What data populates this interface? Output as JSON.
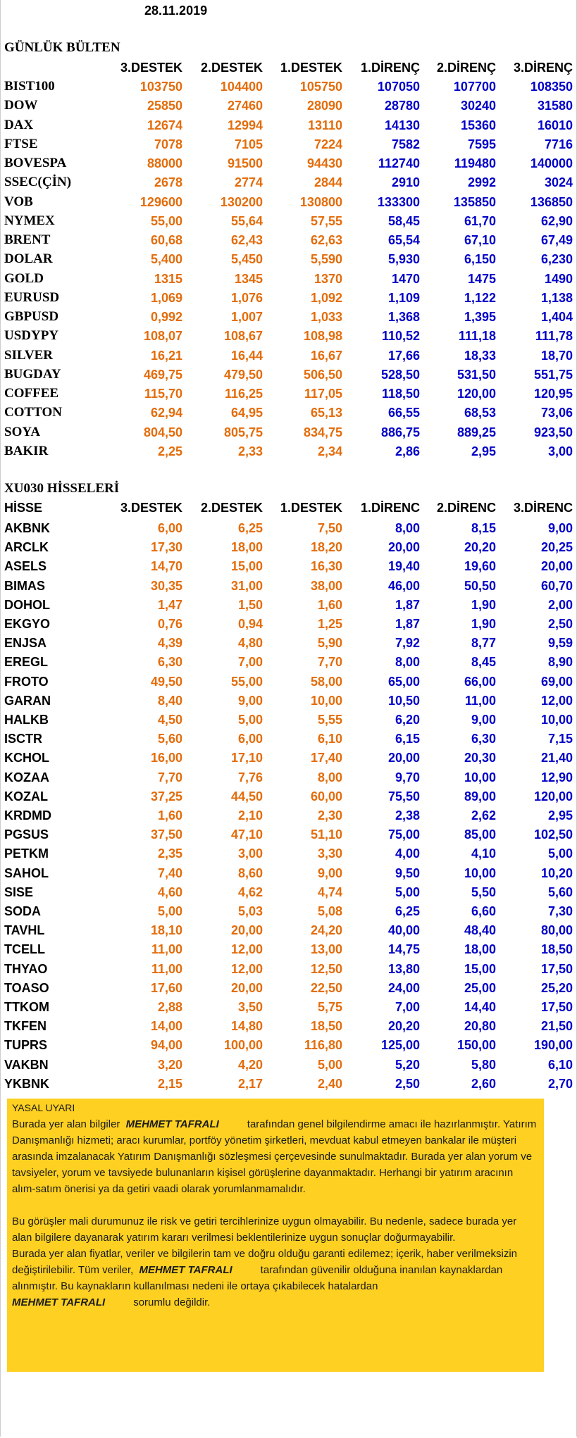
{
  "date": "28.11.2019",
  "bulletin": {
    "title": "GÜNLÜK BÜLTEN",
    "header": [
      "3.DESTEK",
      "2.DESTEK",
      "1.DESTEK",
      "1.DİRENÇ",
      "2.DİRENÇ",
      "3.DİRENÇ"
    ],
    "rows": [
      [
        "BIST100",
        "103750",
        "104400",
        "105750",
        "107050",
        "107700",
        "108350"
      ],
      [
        "DOW",
        "25850",
        "27460",
        "28090",
        "28780",
        "30240",
        "31580"
      ],
      [
        "DAX",
        "12674",
        "12994",
        "13110",
        "14130",
        "15360",
        "16010"
      ],
      [
        "FTSE",
        "7078",
        "7105",
        "7224",
        "7582",
        "7595",
        "7716"
      ],
      [
        "BOVESPA",
        "88000",
        "91500",
        "94430",
        "112740",
        "119480",
        "140000"
      ],
      [
        "SSEC(ÇİN)",
        "2678",
        "2774",
        "2844",
        "2910",
        "2992",
        "3024"
      ],
      [
        "VOB",
        "129600",
        "130200",
        "130800",
        "133300",
        "135850",
        "136850"
      ],
      [
        "NYMEX",
        "55,00",
        "55,64",
        "57,55",
        "58,45",
        "61,70",
        "62,90"
      ],
      [
        "BRENT",
        "60,68",
        "62,43",
        "62,63",
        "65,54",
        "67,10",
        "67,49"
      ],
      [
        "DOLAR",
        "5,400",
        "5,450",
        "5,590",
        "5,930",
        "6,150",
        "6,230"
      ],
      [
        "GOLD",
        "1315",
        "1345",
        "1370",
        "1470",
        "1475",
        "1490"
      ],
      [
        "EURUSD",
        "1,069",
        "1,076",
        "1,092",
        "1,109",
        "1,122",
        "1,138"
      ],
      [
        "GBPUSD",
        "0,992",
        "1,007",
        "1,033",
        "1,368",
        "1,395",
        "1,404"
      ],
      [
        "USDYPY",
        "108,07",
        "108,67",
        "108,98",
        "110,52",
        "111,18",
        "111,78"
      ],
      [
        "SILVER",
        "16,21",
        "16,44",
        "16,67",
        "17,66",
        "18,33",
        "18,70"
      ],
      [
        "BUGDAY",
        "469,75",
        "479,50",
        "506,50",
        "528,50",
        "531,50",
        "551,75"
      ],
      [
        "COFFEE",
        "115,70",
        "116,25",
        "117,05",
        "118,50",
        "120,00",
        "120,95"
      ],
      [
        "COTTON",
        "62,94",
        "64,95",
        "65,13",
        "66,55",
        "68,53",
        "73,06"
      ],
      [
        "SOYA",
        "804,50",
        "805,75",
        "834,75",
        "886,75",
        "889,25",
        "923,50"
      ],
      [
        "BAKIR",
        "2,25",
        "2,33",
        "2,34",
        "2,86",
        "2,95",
        "3,00"
      ]
    ]
  },
  "stocks": {
    "title": "XU030 HİSSELERİ",
    "header": [
      "HİSSE",
      "3.DESTEK",
      "2.DESTEK",
      "1.DESTEK",
      "1.DİRENC",
      "2.DİRENC",
      "3.DİRENC"
    ],
    "rows": [
      [
        "AKBNK",
        "6,00",
        "6,25",
        "7,50",
        "8,00",
        "8,15",
        "9,00"
      ],
      [
        "ARCLK",
        "17,30",
        "18,00",
        "18,20",
        "20,00",
        "20,20",
        "20,25"
      ],
      [
        "ASELS",
        "14,70",
        "15,00",
        "16,30",
        "19,40",
        "19,60",
        "20,00"
      ],
      [
        "BIMAS",
        "30,35",
        "31,00",
        "38,00",
        "46,00",
        "50,50",
        "60,70"
      ],
      [
        "DOHOL",
        "1,47",
        "1,50",
        "1,60",
        "1,87",
        "1,90",
        "2,00"
      ],
      [
        "EKGYO",
        "0,76",
        "0,94",
        "1,25",
        "1,87",
        "1,90",
        "2,50"
      ],
      [
        "ENJSA",
        "4,39",
        "4,80",
        "5,90",
        "7,92",
        "8,77",
        "9,59"
      ],
      [
        "EREGL",
        "6,30",
        "7,00",
        "7,70",
        "8,00",
        "8,45",
        "8,90"
      ],
      [
        "FROTO",
        "49,50",
        "55,00",
        "58,00",
        "65,00",
        "66,00",
        "69,00"
      ],
      [
        "GARAN",
        "8,40",
        "9,00",
        "10,00",
        "10,50",
        "11,00",
        "12,00"
      ],
      [
        "HALKB",
        "4,50",
        "5,00",
        "5,55",
        "6,20",
        "9,00",
        "10,00"
      ],
      [
        "ISCTR",
        "5,60",
        "6,00",
        "6,10",
        "6,15",
        "6,30",
        "7,15"
      ],
      [
        "KCHOL",
        "16,00",
        "17,10",
        "17,40",
        "20,00",
        "20,30",
        "21,40"
      ],
      [
        "KOZAA",
        "7,70",
        "7,76",
        "8,00",
        "9,70",
        "10,00",
        "12,90"
      ],
      [
        "KOZAL",
        "37,25",
        "44,50",
        "60,00",
        "75,50",
        "89,00",
        "120,00"
      ],
      [
        "KRDMD",
        "1,60",
        "2,10",
        "2,30",
        "2,38",
        "2,62",
        "2,95"
      ],
      [
        "PGSUS",
        "37,50",
        "47,10",
        "51,10",
        "75,00",
        "85,00",
        "102,50"
      ],
      [
        "PETKM",
        "2,35",
        "3,00",
        "3,30",
        "4,00",
        "4,10",
        "5,00"
      ],
      [
        "SAHOL",
        "7,40",
        "8,60",
        "9,00",
        "9,50",
        "10,00",
        "10,20"
      ],
      [
        "SISE",
        "4,60",
        "4,62",
        "4,74",
        "5,00",
        "5,50",
        "5,60"
      ],
      [
        "SODA",
        "5,00",
        "5,03",
        "5,08",
        "6,25",
        "6,60",
        "7,30"
      ],
      [
        "TAVHL",
        "18,10",
        "20,00",
        "24,20",
        "40,00",
        "48,40",
        "80,00"
      ],
      [
        "TCELL",
        "11,00",
        "12,00",
        "13,00",
        "14,75",
        "18,00",
        "18,50"
      ],
      [
        "THYAO",
        "11,00",
        "12,00",
        "12,50",
        "13,80",
        "15,00",
        "17,50"
      ],
      [
        "TOASO",
        "17,60",
        "20,00",
        "22,50",
        "24,00",
        "25,00",
        "25,20"
      ],
      [
        "TTKOM",
        "2,88",
        "3,50",
        "5,75",
        "7,00",
        "14,40",
        "17,50"
      ],
      [
        "TKFEN",
        "14,00",
        "14,80",
        "18,50",
        "20,20",
        "20,80",
        "21,50"
      ],
      [
        "TUPRS",
        "94,00",
        "100,00",
        "116,80",
        "125,00",
        "150,00",
        "190,00"
      ],
      [
        "VAKBN",
        "3,20",
        "4,20",
        "5,00",
        "5,20",
        "5,80",
        "6,10"
      ],
      [
        "YKBNK",
        "2,15",
        "2,17",
        "2,40",
        "2,50",
        "2,60",
        "2,70"
      ]
    ]
  },
  "notice": {
    "title": "YASAL UYARI",
    "author": "MEHMET TAFRALI",
    "p1a": "Burada yer alan bilgiler",
    "p1b": "tarafından genel bilgilendirme amacı ile hazırlanmıştır. Yatırım Danışmanlığı hizmeti; aracı kurumlar, portföy yönetim şirketleri, mevduat kabul etmeyen bankalar ile müşteri arasında imzalanacak Yatırım Danışmanlığı sözleşmesi çerçevesinde sunulmaktadır. Burada yer alan yorum ve tavsiyeler, yorum ve tavsiyede bulunanların kişisel görüşlerine dayanmaktadır. Herhangi bir yatırım aracının alım-satım önerisi ya da getiri vaadi olarak yorumlanmamalıdır.",
    "p2": "Bu görüşler mali durumunuz ile risk ve getiri tercihlerinize uygun olmayabilir. Bu nedenle, sadece burada yer alan bilgilere dayanarak yatırım kararı verilmesi beklentilerinize uygun sonuçlar doğurmayabilir.",
    "p3a": "Burada yer alan fiyatlar, veriler ve bilgilerin tam ve doğru olduğu garanti edilemez; içerik, haber verilmeksizin değiştirilebilir. Tüm veriler,",
    "p3b": "tarafından güvenilir olduğuna inanılan kaynaklardan alınmıştır. Bu kaynakların kullanılması nedeni ile ortaya çıkabilecek hatalardan",
    "p3c": "sorumlu değildir."
  }
}
